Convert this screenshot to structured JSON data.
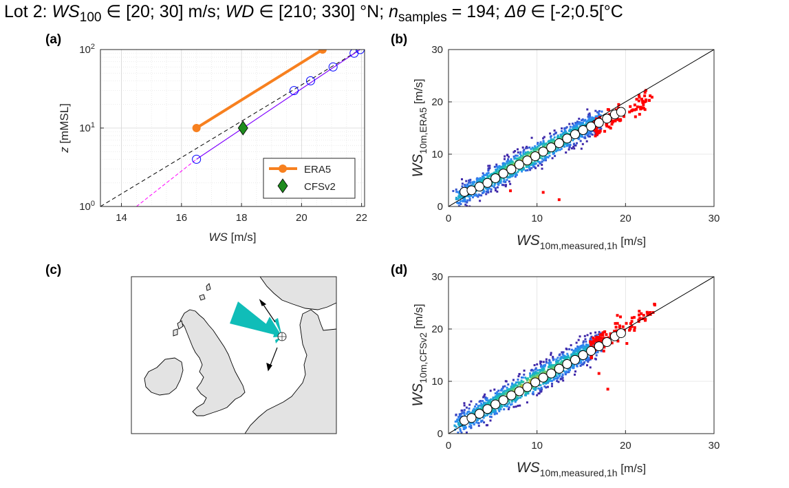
{
  "figure_title": {
    "pre": "Lot 2: ",
    "ws": "WS",
    "ws_sub": "100",
    "ws_range": " ∈ [20; 30] m/s;  ",
    "wd": "WD",
    "wd_range": " ∈ [210; 330] °N; ",
    "n": "n",
    "n_sub": "samples",
    "n_val": " = 194; ",
    "dtheta": "Δθ",
    "dtheta_range": " ∈ [-2;0.5[°C"
  },
  "panel_labels": [
    "(a)",
    "(b)",
    "(c)",
    "(d)"
  ],
  "colors": {
    "era5": "#F7801F",
    "cfsv2": "#1E8C1E",
    "measured": "#0000FF",
    "purple_fit": "#7F00FF",
    "magenta_fit": "#FF00FF",
    "outlier": "#FF0000",
    "wind_rose": "#10BDB8",
    "land": "#E3E3E3"
  },
  "chart_data": [
    {
      "panel": "(a)",
      "type": "line",
      "xlabel_italic": "WS",
      "xlabel_unit": " [m/s]",
      "ylabel_italic": "z",
      "ylabel_unit": " [mMSL]",
      "xlim": [
        13.3,
        22.1
      ],
      "ylim": [
        1,
        100
      ],
      "yscale": "log",
      "xticks": [
        14,
        16,
        18,
        20,
        22
      ],
      "yticks": [
        {
          "v": 1,
          "base": "10",
          "exp": "0"
        },
        {
          "v": 10,
          "base": "10",
          "exp": "1"
        },
        {
          "v": 100,
          "base": "10",
          "exp": "2"
        }
      ],
      "grid": true,
      "legend_position": "bottom-right",
      "series": [
        {
          "name": "ERA5",
          "kind": "line-marker",
          "x": [
            16.5,
            20.7
          ],
          "y": [
            10,
            100
          ]
        },
        {
          "name": "CFSv2",
          "kind": "diamond",
          "x": [
            18.05
          ],
          "y": [
            10
          ]
        },
        {
          "kind": "circles",
          "x": [
            16.5,
            19.75,
            20.3,
            21.05,
            21.75,
            21.95
          ],
          "y": [
            4,
            30,
            40,
            60,
            90,
            100
          ]
        },
        {
          "kind": "purple-fit",
          "x": [
            16.5,
            21.95
          ],
          "y": [
            4,
            100
          ]
        },
        {
          "kind": "magenta-dashed",
          "x": [
            14.5,
            16.5
          ],
          "y": [
            1,
            4
          ]
        },
        {
          "kind": "black-dashed",
          "x": [
            13.3,
            21.95
          ],
          "y": [
            1,
            100
          ]
        }
      ]
    },
    {
      "panel": "(b)",
      "type": "scatter",
      "xlabel_italic": "WS",
      "xlabel_sub": "10m,measured,1h",
      "xlabel_unit": " [m/s]",
      "ylabel_italic": "WS",
      "ylabel_sub": "10m,ERA5",
      "ylabel_unit": " [m/s]",
      "xlim": [
        0,
        30
      ],
      "ylim": [
        0,
        30
      ],
      "xticks": [
        0,
        10,
        20,
        30
      ],
      "yticks": [
        0,
        10,
        20,
        30
      ],
      "grid": true,
      "binned_means": {
        "x": [
          1.8,
          2.6,
          3.5,
          4.4,
          5.3,
          6.2,
          7.1,
          8.0,
          8.9,
          9.8,
          10.7,
          11.6,
          12.5,
          13.4,
          14.3,
          15.2,
          16.1,
          17.0,
          17.9,
          18.8,
          19.5
        ],
        "y": [
          2.8,
          3.1,
          3.8,
          4.5,
          5.4,
          6.3,
          7.1,
          8.0,
          8.8,
          9.6,
          10.5,
          11.3,
          12.1,
          13.0,
          13.8,
          14.6,
          15.3,
          16.0,
          16.8,
          17.6,
          18.1
        ]
      },
      "cloud": {
        "slope": 0.93,
        "intercept": 0.7,
        "xmin": 1.0,
        "xmax": 17.0,
        "spread": 1.1
      },
      "red_cluster": {
        "x_range": [
          16.5,
          23.0
        ],
        "center_slope": 0.9
      },
      "extra_points": [
        [
          10.7,
          2.7
        ],
        [
          12.5,
          1.3
        ],
        [
          7.0,
          3.0
        ]
      ],
      "reference_line": "y=x"
    },
    {
      "panel": "(d)",
      "type": "scatter",
      "xlabel_italic": "WS",
      "xlabel_sub": "10m,measured,1h",
      "xlabel_unit": " [m/s]",
      "ylabel_italic": "WS",
      "ylabel_sub": "10m,CFSv2",
      "ylabel_unit": " [m/s]",
      "xlim": [
        0,
        30
      ],
      "ylim": [
        0,
        30
      ],
      "xticks": [
        0,
        10,
        20,
        30
      ],
      "yticks": [
        0,
        10,
        20,
        30
      ],
      "grid": true,
      "binned_means": {
        "x": [
          1.8,
          2.6,
          3.5,
          4.4,
          5.3,
          6.2,
          7.1,
          8.0,
          8.9,
          9.8,
          10.7,
          11.6,
          12.5,
          13.4,
          14.3,
          15.2,
          16.1,
          17.0,
          17.9,
          18.8,
          19.5
        ],
        "y": [
          2.5,
          3.0,
          3.8,
          4.7,
          5.6,
          6.4,
          7.3,
          8.1,
          8.9,
          9.8,
          10.7,
          11.5,
          12.4,
          13.3,
          14.1,
          15.0,
          15.8,
          16.7,
          17.5,
          18.6,
          19.2
        ]
      },
      "cloud": {
        "slope": 0.97,
        "intercept": 0.6,
        "xmin": 1.0,
        "xmax": 17.0,
        "spread": 1.2
      },
      "red_cluster": {
        "x_range": [
          16.0,
          23.5
        ],
        "center_slope": 1.02
      },
      "extra_points": [
        [
          18.0,
          8.5
        ],
        [
          17.0,
          11.5
        ]
      ],
      "reference_line": "y=x"
    }
  ],
  "map": {
    "panel": "(c)",
    "type": "map",
    "description_none": ""
  }
}
